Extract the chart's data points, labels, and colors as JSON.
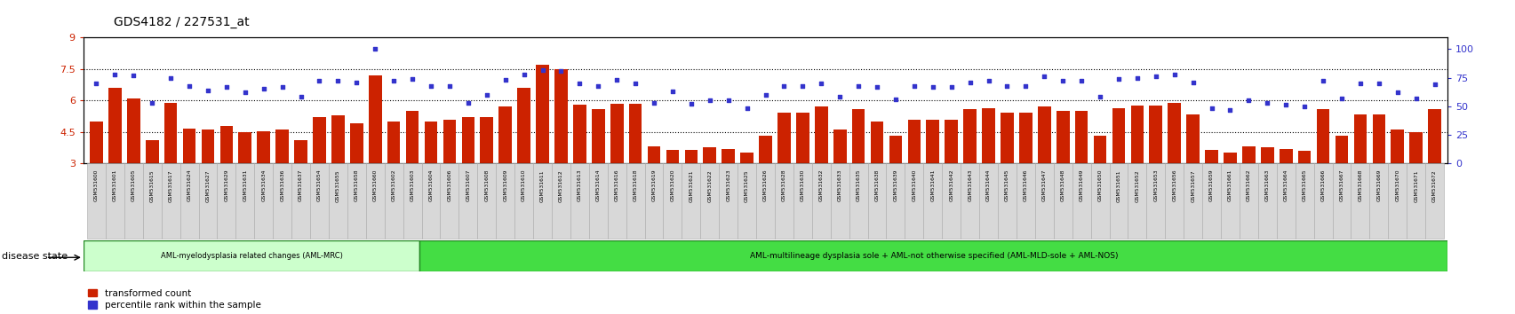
{
  "title": "GDS4182 / 227531_at",
  "samples": [
    "GSM531600",
    "GSM531601",
    "GSM531605",
    "GSM531615",
    "GSM531617",
    "GSM531624",
    "GSM531627",
    "GSM531629",
    "GSM531631",
    "GSM531634",
    "GSM531636",
    "GSM531637",
    "GSM531654",
    "GSM531655",
    "GSM531658",
    "GSM531660",
    "GSM531602",
    "GSM531603",
    "GSM531604",
    "GSM531606",
    "GSM531607",
    "GSM531608",
    "GSM531609",
    "GSM531610",
    "GSM531611",
    "GSM531612",
    "GSM531613",
    "GSM531614",
    "GSM531616",
    "GSM531618",
    "GSM531619",
    "GSM531620",
    "GSM531621",
    "GSM531622",
    "GSM531623",
    "GSM531625",
    "GSM531626",
    "GSM531628",
    "GSM531630",
    "GSM531632",
    "GSM531633",
    "GSM531635",
    "GSM531638",
    "GSM531639",
    "GSM531640",
    "GSM531641",
    "GSM531642",
    "GSM531643",
    "GSM531644",
    "GSM531645",
    "GSM531646",
    "GSM531647",
    "GSM531648",
    "GSM531649",
    "GSM531650",
    "GSM531651",
    "GSM531652",
    "GSM531653",
    "GSM531656",
    "GSM531657",
    "GSM531659",
    "GSM531661",
    "GSM531662",
    "GSM531663",
    "GSM531664",
    "GSM531665",
    "GSM531666",
    "GSM531667",
    "GSM531668",
    "GSM531669",
    "GSM531670",
    "GSM531671",
    "GSM531672"
  ],
  "bar_values": [
    5.0,
    6.6,
    6.1,
    4.1,
    5.9,
    4.65,
    4.6,
    4.8,
    4.5,
    4.55,
    4.6,
    4.1,
    5.2,
    5.3,
    4.9,
    7.2,
    5.0,
    5.5,
    5.0,
    5.1,
    5.2,
    5.2,
    5.7,
    6.6,
    7.7,
    7.5,
    5.8,
    5.6,
    5.85,
    5.85,
    3.8,
    3.65,
    3.65,
    3.75,
    3.7,
    3.5,
    4.3,
    5.4,
    5.4,
    5.7,
    4.6,
    5.6,
    5.0,
    4.3,
    5.1,
    5.1,
    5.1,
    5.6,
    5.65,
    5.4,
    5.4,
    5.7,
    5.5,
    5.5,
    4.3,
    5.65,
    5.75,
    5.75,
    5.9,
    5.35,
    3.65,
    3.5,
    3.8,
    3.75,
    3.7,
    3.6,
    5.6,
    4.3,
    5.35,
    5.35,
    4.6,
    4.5,
    5.6
  ],
  "dot_values": [
    70,
    78,
    77,
    53,
    75,
    68,
    64,
    67,
    62,
    65,
    67,
    58,
    72,
    72,
    71,
    100,
    72,
    74,
    68,
    68,
    53,
    60,
    73,
    78,
    82,
    81,
    70,
    68,
    73,
    70,
    53,
    63,
    52,
    55,
    55,
    48,
    60,
    68,
    68,
    70,
    58,
    68,
    67,
    56,
    68,
    67,
    67,
    71,
    72,
    68,
    68,
    76,
    72,
    72,
    58,
    74,
    75,
    76,
    78,
    71,
    48,
    47,
    55,
    53,
    51,
    50,
    72,
    57,
    70,
    70,
    62,
    57,
    69
  ],
  "group1_count": 18,
  "group2_plus_count": 55,
  "group1_label": "AML-myelodysplasia related changes (AML-MRC)",
  "group2_label": "AML-multilineage dysplasia sole + AML-not otherwise specified (AML-MLD-sole + AML-NOS)",
  "ylim_left": [
    3,
    9
  ],
  "yticks_left": [
    3,
    4.5,
    6,
    7.5,
    9
  ],
  "ylim_right": [
    0,
    110
  ],
  "yticks_right": [
    0,
    25,
    50,
    75,
    100
  ],
  "bar_color": "#cc2200",
  "dot_color": "#3333cc",
  "hline_values": [
    4.5,
    6.0,
    7.5
  ],
  "group1_color": "#ccffcc",
  "group2_color": "#44dd44",
  "separator_color": "#228822",
  "label_color_left": "#cc2200",
  "label_color_right": "#3333cc",
  "disease_label": "disease state"
}
